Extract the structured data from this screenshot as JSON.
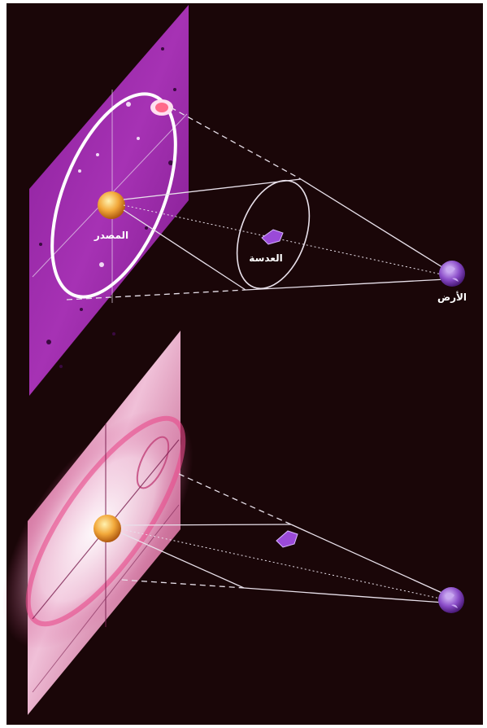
{
  "labels": {
    "source": "المصدر",
    "lens": "العدسة",
    "earth": "الأرض"
  },
  "colors": {
    "background": "#1a0608",
    "upper_panel": "#9c2aa8",
    "lower_panel": "#c84a86",
    "source_star": "#f2a83a",
    "earth": "#8a4cc8",
    "lines": "#e8e0ea"
  }
}
